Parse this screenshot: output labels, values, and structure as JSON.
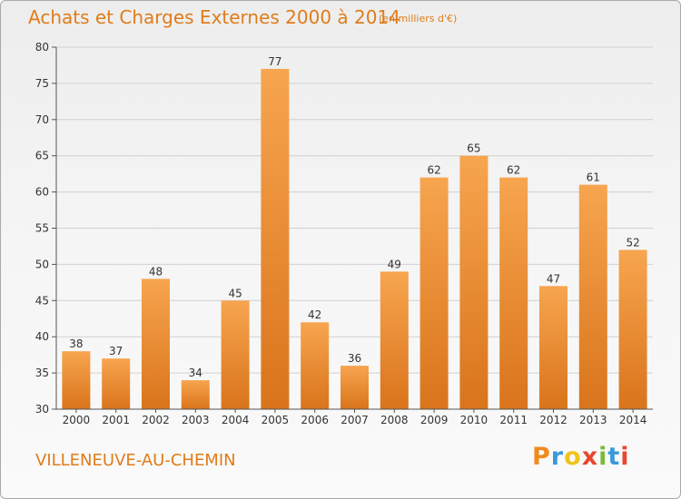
{
  "header": {
    "title": "Achats et Charges Externes 2000 à 2014",
    "subtitle": "(en milliers d'€)"
  },
  "footer": {
    "location": "VILLENEUVE-AU-CHEMIN",
    "brand_letters": [
      "P",
      "r",
      "o",
      "x",
      "i",
      "t",
      "i"
    ],
    "brand_colors": [
      "#f08a1c",
      "#3a9ad9",
      "#f0c419",
      "#e8472f",
      "#7dba3b",
      "#3a9ad9",
      "#e8472f"
    ]
  },
  "chart_data": {
    "type": "bar",
    "categories": [
      "2000",
      "2001",
      "2002",
      "2003",
      "2004",
      "2005",
      "2006",
      "2007",
      "2008",
      "2009",
      "2010",
      "2011",
      "2012",
      "2013",
      "2014"
    ],
    "values": [
      38,
      37,
      48,
      34,
      45,
      77,
      42,
      36,
      49,
      62,
      65,
      62,
      47,
      61,
      52
    ],
    "title": "Achats et Charges Externes 2000 à 2014",
    "subtitle": "(en milliers d'€)",
    "xlabel": "",
    "ylabel": "",
    "ylim": [
      30,
      80
    ],
    "yticks": [
      30,
      35,
      40,
      45,
      50,
      55,
      60,
      65,
      70,
      75,
      80
    ],
    "grid": true,
    "data_labels": true,
    "colors": {
      "bar_light": "#f7a54f",
      "bar_dark": "#d9741b",
      "grid": "#d0d0d0",
      "axis": "#555555",
      "text": "#333333"
    }
  }
}
